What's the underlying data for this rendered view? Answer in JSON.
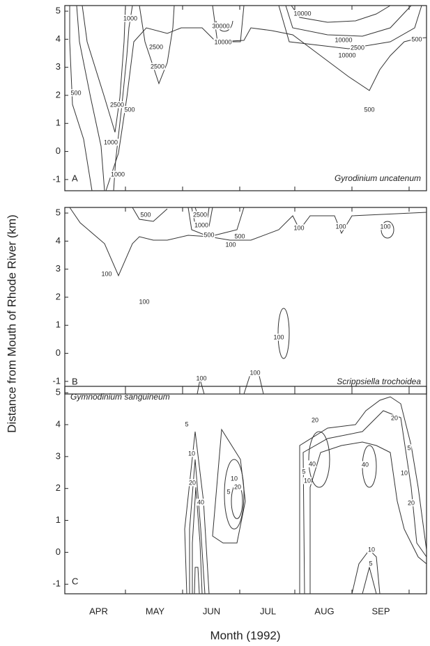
{
  "chart_data": [
    {
      "type": "contour",
      "panel": "A",
      "species": "Gyrodinium uncatenum",
      "ylim": [
        -1.4,
        5.2
      ],
      "yticks": [
        -1,
        0,
        1,
        2,
        3,
        4,
        5
      ],
      "contour_labels": [
        1000,
        2500,
        2500,
        30000,
        10000,
        10000,
        10000,
        2500,
        10000,
        500,
        500,
        500,
        2500,
        500,
        1000,
        1000
      ]
    },
    {
      "type": "contour",
      "panel": "B",
      "species": "Scrippsiella trochoidea",
      "y_label": "Distance from Mouth of Rhode River (km)",
      "ylim": [
        -1.45,
        5.2
      ],
      "yticks": [
        -1,
        0,
        1,
        2,
        3,
        4,
        5
      ],
      "contour_labels": [
        500,
        2500,
        1000,
        500,
        500,
        100,
        100,
        100,
        100,
        100,
        100,
        100,
        100,
        100
      ]
    },
    {
      "type": "contour",
      "panel": "C",
      "species": "Gymnodinium sanguineum",
      "ylim": [
        -1.3,
        5.2
      ],
      "yticks": [
        -1,
        0,
        1,
        2,
        3,
        4,
        5
      ],
      "contour_labels": [
        5,
        10,
        20,
        40,
        5,
        10,
        20,
        5,
        10,
        20,
        40,
        40,
        20,
        5,
        10,
        20,
        10,
        5
      ],
      "categories": [
        "APR",
        "MAY",
        "JUN",
        "JUL",
        "AUG",
        "SEP"
      ],
      "x_label": "Month (1992)"
    }
  ]
}
